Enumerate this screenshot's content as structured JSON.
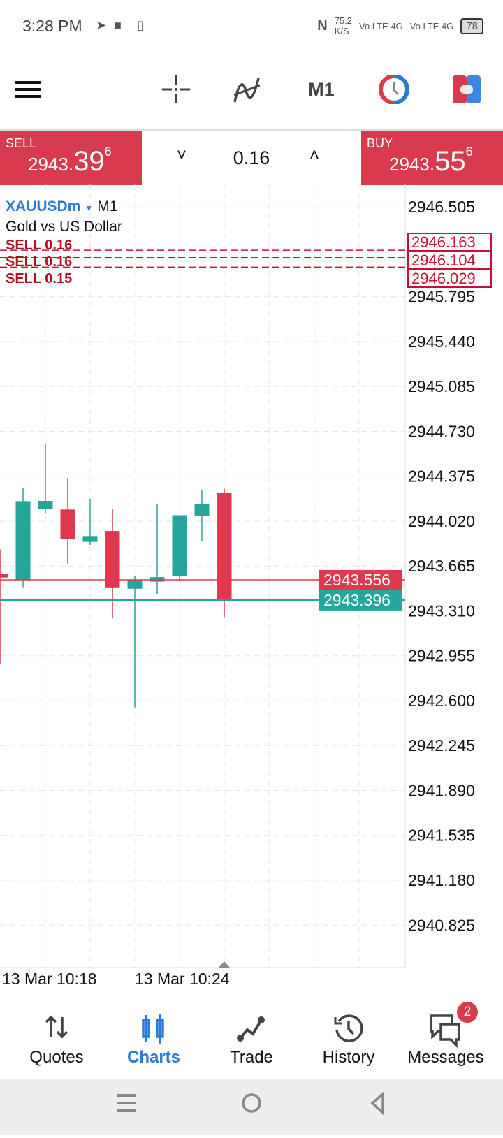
{
  "status_bar": {
    "time": "3:28 PM",
    "net_speed": "75.2",
    "net_unit": "K/S",
    "sim1": "Vo LTE 4G",
    "sim2": "Vo LTE 4G",
    "battery": "78"
  },
  "toolbar": {
    "timeframe": "M1",
    "icons": [
      "menu-icon",
      "crosshair-icon",
      "indicators-icon",
      "timeframe",
      "clock-icon",
      "toggle-icon"
    ]
  },
  "trade_bar": {
    "sell_label": "SELL",
    "sell_price_main": "2943.",
    "sell_price_big": "39",
    "sell_price_sup": "6",
    "buy_label": "BUY",
    "buy_price_main": "2943.",
    "buy_price_big": "55",
    "buy_price_sup": "6",
    "volume": "0.16",
    "decrease": "˅",
    "increase": "˄"
  },
  "chart": {
    "symbol": "XAUUSDm",
    "timeframe": "M1",
    "description": "Gold vs US Dollar",
    "colors": {
      "bull": "#26a69a",
      "bear": "#e0384f",
      "ask": "#e0384f",
      "bid": "#26a69a",
      "order": "#c8102e",
      "accent": "#2a7ad9"
    }
  },
  "chart_data": {
    "type": "candlestick",
    "y_ticks": [
      "2946.505",
      "2945.795",
      "2945.440",
      "2945.085",
      "2944.730",
      "2944.375",
      "2944.020",
      "2943.665",
      "2943.310",
      "2942.955",
      "2942.600",
      "2942.245",
      "2941.890",
      "2941.535",
      "2941.180",
      "2940.825"
    ],
    "y_tick_values": [
      2946.505,
      2945.795,
      2945.44,
      2945.085,
      2944.73,
      2944.375,
      2944.02,
      2943.665,
      2943.31,
      2942.955,
      2942.6,
      2942.245,
      2941.89,
      2941.535,
      2941.18,
      2940.825
    ],
    "x_labels": [
      "13 Mar 10:18",
      "13 Mar 10:24"
    ],
    "grid": true,
    "candles": [
      {
        "o": 2943.605,
        "h": 2943.795,
        "l": 2942.892,
        "c": 2943.574
      },
      {
        "o": 2943.552,
        "h": 2944.283,
        "l": 2943.496,
        "c": 2944.178
      },
      {
        "o": 2944.117,
        "h": 2944.627,
        "l": 2944.084,
        "c": 2944.18
      },
      {
        "o": 2944.112,
        "h": 2944.362,
        "l": 2943.684,
        "c": 2943.878
      },
      {
        "o": 2943.856,
        "h": 2944.195,
        "l": 2943.832,
        "c": 2943.902
      },
      {
        "o": 2943.942,
        "h": 2944.117,
        "l": 2943.251,
        "c": 2943.496
      },
      {
        "o": 2943.485,
        "h": 2943.583,
        "l": 2942.546,
        "c": 2943.555
      },
      {
        "o": 2943.541,
        "h": 2944.158,
        "l": 2943.439,
        "c": 2943.577
      },
      {
        "o": 2943.587,
        "h": 2944.067,
        "l": 2943.546,
        "c": 2944.067
      },
      {
        "o": 2944.062,
        "h": 2944.27,
        "l": 2943.859,
        "c": 2944.158
      },
      {
        "o": 2944.244,
        "h": 2944.277,
        "l": 2943.261,
        "c": 2943.395
      }
    ],
    "ask": {
      "value": 2943.556,
      "label": "2943.556"
    },
    "bid": {
      "value": 2943.396,
      "label": "2943.396"
    },
    "orders": [
      {
        "label": "SELL 0.16",
        "value": 2946.163,
        "price": "2946.163"
      },
      {
        "label": "SELL 0.16",
        "value": 2946.104,
        "price": "2946.104"
      },
      {
        "label": "SELL 0.15",
        "value": 2946.029,
        "price": "2946.029"
      }
    ]
  },
  "bottom_nav": {
    "items": [
      {
        "label": "Quotes",
        "icon": "arrows-updown-icon"
      },
      {
        "label": "Charts",
        "icon": "candles-icon",
        "active": true
      },
      {
        "label": "Trade",
        "icon": "trend-icon"
      },
      {
        "label": "History",
        "icon": "history-icon"
      },
      {
        "label": "Messages",
        "icon": "chat-icon",
        "badge": "2"
      }
    ]
  }
}
